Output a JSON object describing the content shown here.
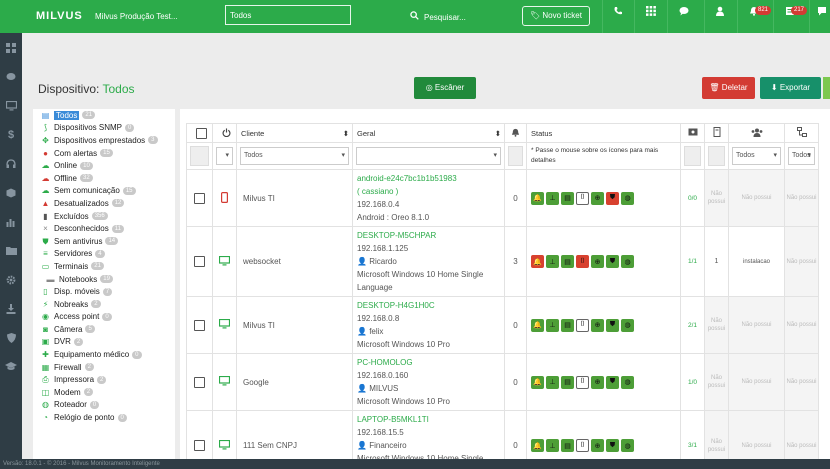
{
  "topbar": {
    "logo": "MILVUS",
    "company": "Milvus Produção Test...",
    "select_value": "Todos",
    "search_placeholder": "Pesquisar...",
    "new_ticket": "Novo ticket",
    "badges": {
      "notifications": "821",
      "tickets": "217"
    }
  },
  "page": {
    "title_prefix": "Dispositivo:",
    "title_value": "Todos",
    "scan_button": "Escâner",
    "delete_button": "Deletar",
    "export_button": "Exportar"
  },
  "tree": [
    {
      "label": "Todos",
      "count": "21",
      "icon": "list-icon",
      "color": "#3a8bd8",
      "sel": true
    },
    {
      "label": "Dispositivos SNMP",
      "count": "0",
      "icon": "wifi-icon",
      "color": "#2cab4a"
    },
    {
      "label": "Dispositivos emprestados",
      "count": "3",
      "icon": "handshake-icon",
      "color": "#2cab4a"
    },
    {
      "label": "Com alertas",
      "count": "15",
      "icon": "bell-icon",
      "color": "#d33b33"
    },
    {
      "label": "Online",
      "count": "10",
      "icon": "cloud-icon",
      "color": "#2cab4a"
    },
    {
      "label": "Offline",
      "count": "32",
      "icon": "cloud-icon",
      "color": "#d33b33"
    },
    {
      "label": "Sem comunicação",
      "count": "15",
      "icon": "cloud-icon",
      "color": "#2cab4a"
    },
    {
      "label": "Desatualizados",
      "count": "12",
      "icon": "warning-icon",
      "color": "#d33b33"
    },
    {
      "label": "Excluídos",
      "count": "356",
      "icon": "trash-icon",
      "color": "#555"
    },
    {
      "label": "Desconhecidos",
      "count": "11",
      "icon": "times-icon",
      "color": "#888"
    },
    {
      "label": "Sem antivirus",
      "count": "14",
      "icon": "shield-icon",
      "color": "#2cab4a"
    },
    {
      "label": "Servidores",
      "count": "4",
      "icon": "server-icon",
      "color": "#2cab4a"
    },
    {
      "label": "Terminais",
      "count": "21",
      "icon": "monitor-icon",
      "color": "#2cab4a"
    },
    {
      "label": "Notebooks",
      "count": "19",
      "icon": "folder-icon",
      "color": "#888",
      "indent": true
    },
    {
      "label": "Disp. móveis",
      "count": "7",
      "icon": "mobile-icon",
      "color": "#2cab4a"
    },
    {
      "label": "Nobreaks",
      "count": "2",
      "icon": "plug-icon",
      "color": "#2cab4a"
    },
    {
      "label": "Access point",
      "count": "0",
      "icon": "signal-icon",
      "color": "#2cab4a"
    },
    {
      "label": "Câmera",
      "count": "5",
      "icon": "camera-icon",
      "color": "#2cab4a"
    },
    {
      "label": "DVR",
      "count": "2",
      "icon": "dvr-icon",
      "color": "#2cab4a"
    },
    {
      "label": "Equipamento médico",
      "count": "0",
      "icon": "medical-icon",
      "color": "#2cab4a"
    },
    {
      "label": "Firewall",
      "count": "2",
      "icon": "fire-icon",
      "color": "#2cab4a"
    },
    {
      "label": "Impressora",
      "count": "2",
      "icon": "printer-icon",
      "color": "#2cab4a"
    },
    {
      "label": "Modem",
      "count": "2",
      "icon": "modem-icon",
      "color": "#2cab4a"
    },
    {
      "label": "Roteador",
      "count": "0",
      "icon": "router-icon",
      "color": "#2cab4a"
    },
    {
      "label": "Relógio de ponto",
      "count": "0",
      "icon": "clock-icon",
      "color": "#2cab4a"
    }
  ],
  "table": {
    "headers": {
      "client": "Cliente",
      "general": "Geral",
      "status": "Status"
    },
    "filters": {
      "client": "Todos",
      "status_hint": "* Passe o mouse sobre os ícones para mais detalhes",
      "col_a": "Todos",
      "col_b": "Todos"
    },
    "rows": [
      {
        "type": "mobile",
        "client": "Milvus TI",
        "name": "android-e24c7bc1b1b51983",
        "name2": "( cassiano )",
        "ip": "192.168.0.4",
        "user": "",
        "os": "Android : Oreo 8.1.0",
        "alerts": "0",
        "s": [
          "g",
          "g",
          "g",
          "w",
          "g",
          "r",
          "g"
        ],
        "ratio": "0/0",
        "c2": "Não possui",
        "c3": "Não possui",
        "c4": "Não possui"
      },
      {
        "type": "pc",
        "client": "websocket",
        "name": "DESKTOP-M5CHPAR",
        "name2": "",
        "ip": "192.168.1.125",
        "user": "Ricardo",
        "os": "Microsoft Windows 10 Home Single Language",
        "alerts": "3",
        "s": [
          "r",
          "g",
          "g",
          "r",
          "g",
          "g",
          "g"
        ],
        "ratio": "1/1",
        "c2": "1",
        "c3": "instalacao",
        "c4": "Não possui"
      },
      {
        "type": "pc",
        "client": "Milvus TI",
        "name": "DESKTOP-H4G1H0C",
        "name2": "",
        "ip": "192.168.0.8",
        "user": "felix",
        "os": "Microsoft Windows 10 Pro",
        "alerts": "0",
        "s": [
          "g",
          "g",
          "g",
          "w",
          "g",
          "g",
          "g"
        ],
        "ratio": "2/1",
        "c2": "Não possui",
        "c3": "Não possui",
        "c4": "Não possui"
      },
      {
        "type": "pc",
        "client": "Google",
        "name": "PC-HOMOLOG",
        "name2": "",
        "ip": "192.168.0.160",
        "user": "MILVUS",
        "os": "Microsoft Windows 10 Pro",
        "alerts": "0",
        "s": [
          "g",
          "g",
          "g",
          "w",
          "g",
          "g",
          "g"
        ],
        "ratio": "1/0",
        "c2": "Não possui",
        "c3": "Não possui",
        "c4": "Não possui"
      },
      {
        "type": "pc",
        "client": "111 Sem CNPJ",
        "name": "LAPTOP-B5MKL1TI",
        "name2": "",
        "ip": "192.168.15.5",
        "user": "Financeiro",
        "os": "Microsoft Windows 10 Home Single Language",
        "alerts": "0",
        "s": [
          "g",
          "g",
          "g",
          "w",
          "g",
          "g",
          "g"
        ],
        "ratio": "3/1",
        "c2": "Não possui",
        "c3": "Não possui",
        "c4": "Não possui"
      }
    ]
  },
  "footer": {
    "text": "Versão: 18.0.1  -  © 2016 - Milvus Monitoramento Inteligente"
  }
}
